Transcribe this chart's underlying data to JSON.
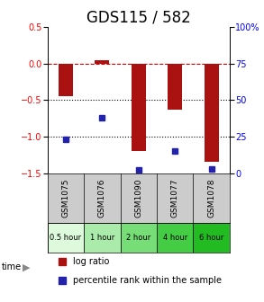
{
  "title": "GDS115 / 582",
  "categories": [
    "GSM1075",
    "GSM1076",
    "GSM1090",
    "GSM1077",
    "GSM1078"
  ],
  "time_labels": [
    "0.5 hour",
    "1 hour",
    "2 hour",
    "4 hour",
    "6 hour"
  ],
  "log_ratios": [
    -0.45,
    0.05,
    -1.2,
    -0.63,
    -1.35
  ],
  "percentile_ranks": [
    23,
    38,
    2,
    15,
    3
  ],
  "bar_color": "#AA1111",
  "dot_color": "#2222AA",
  "ylim_left": [
    -1.5,
    0.5
  ],
  "ylim_right": [
    0,
    100
  ],
  "yticks_left": [
    0.5,
    0.0,
    -0.5,
    -1.0,
    -1.5
  ],
  "yticks_right": [
    100,
    75,
    50,
    25,
    0
  ],
  "hlines": [
    0.0,
    -0.5,
    -1.0
  ],
  "hline_styles": [
    "--",
    ":",
    ":"
  ],
  "hline_colors": [
    "#CC0000",
    "#000000",
    "#000000"
  ],
  "time_colors": [
    "#DDFADD",
    "#AAEAAA",
    "#77DD77",
    "#44CC44",
    "#22BB22"
  ],
  "bg_color": "#FFFFFF",
  "bar_width": 0.4,
  "title_fontsize": 12
}
